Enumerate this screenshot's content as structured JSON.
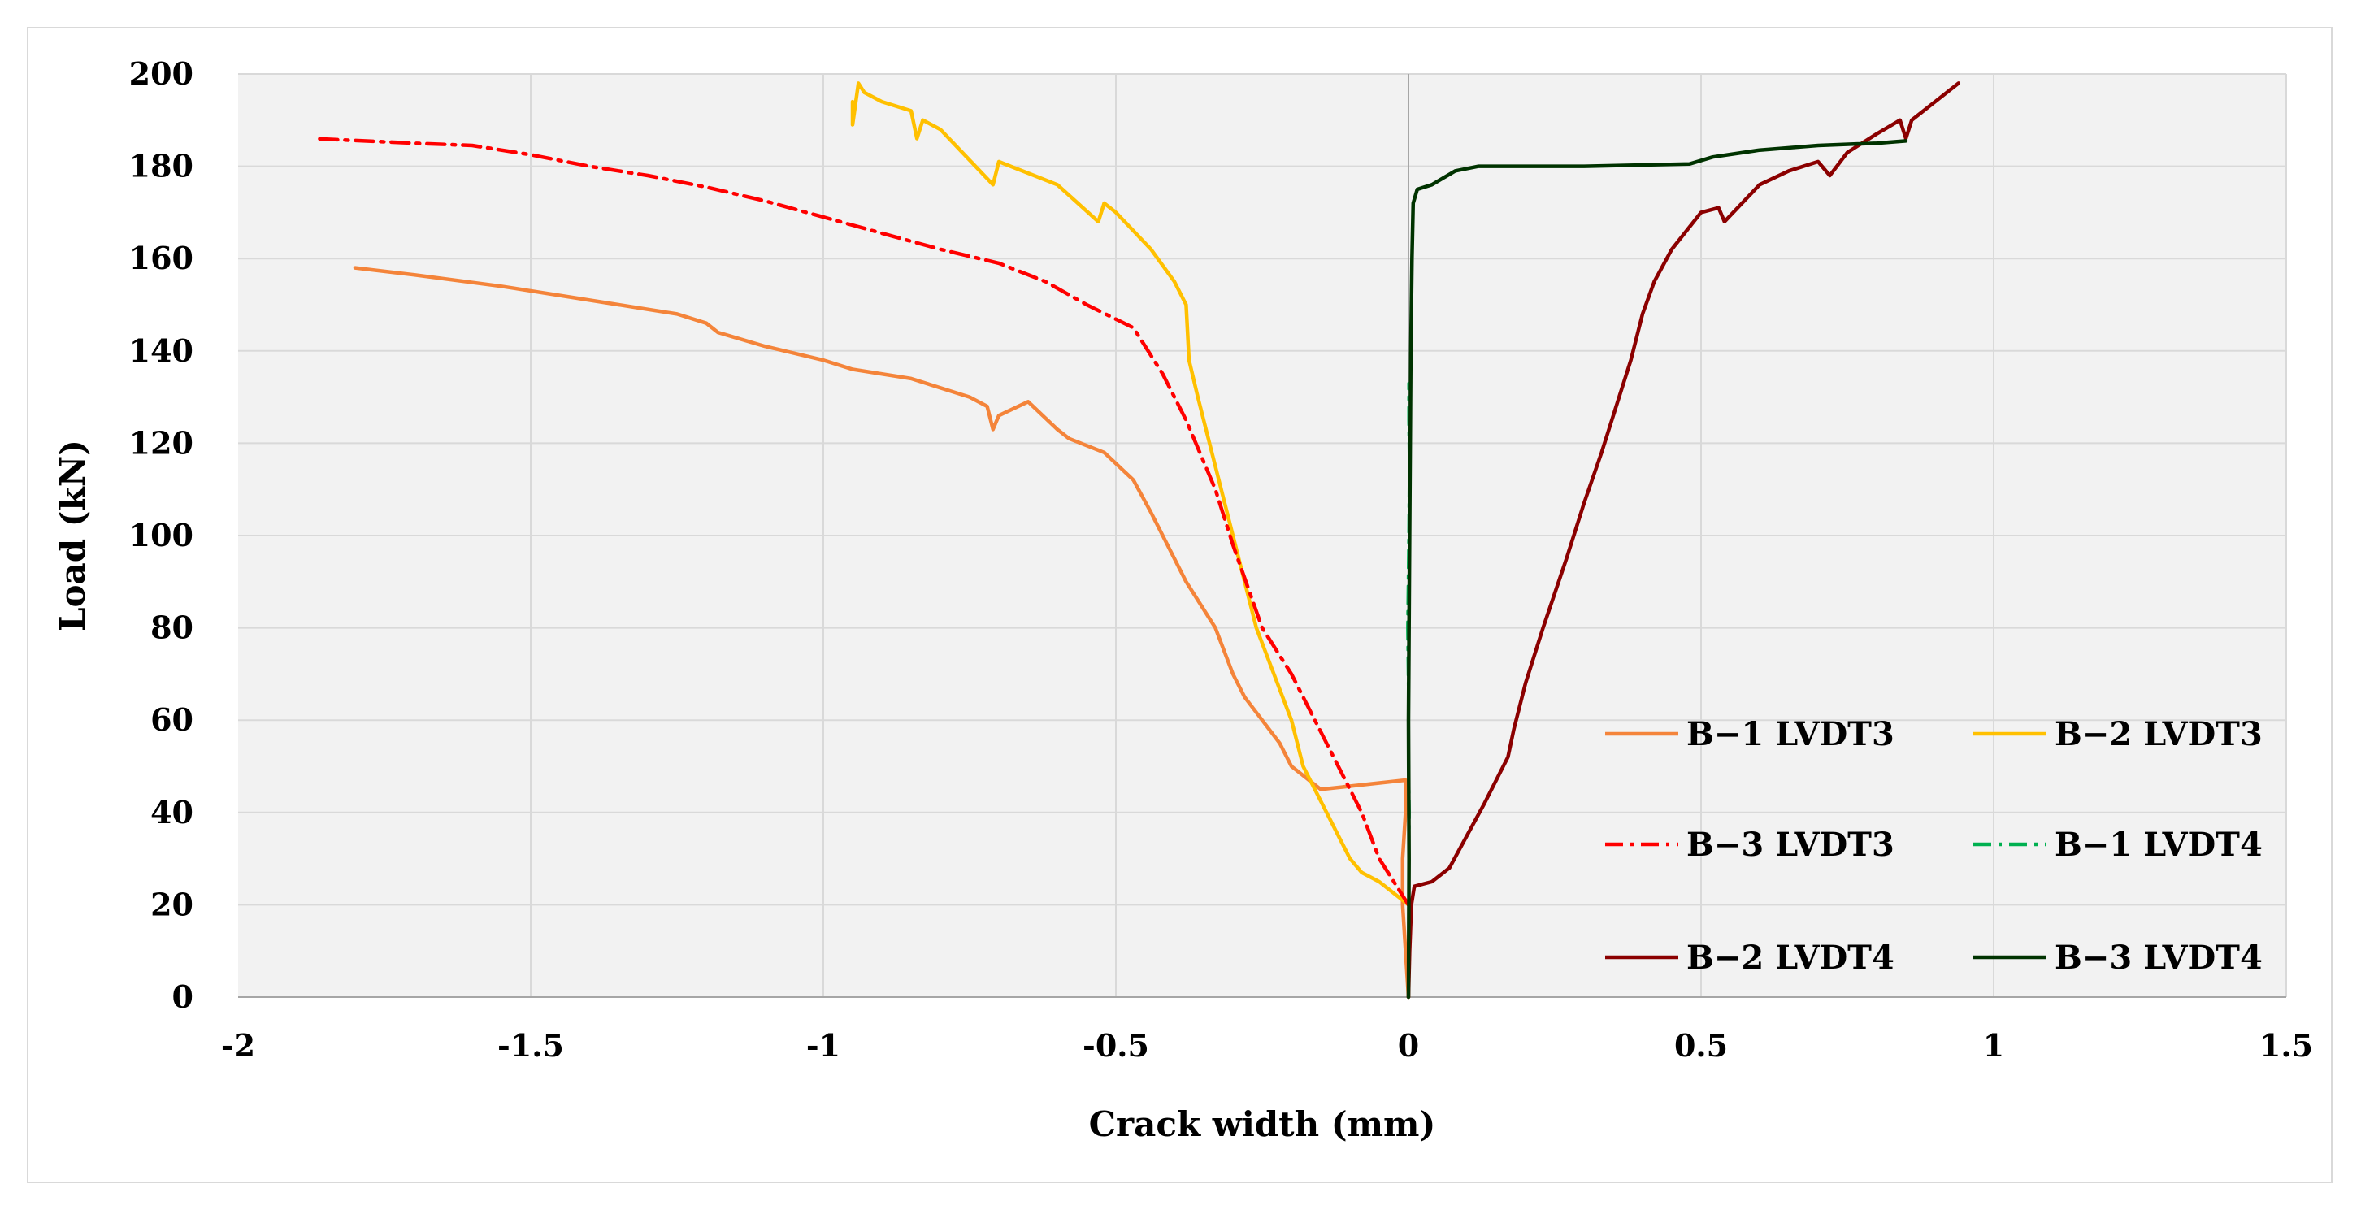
{
  "chart_data": {
    "type": "line",
    "title": "",
    "xlabel": "Crack width (mm)",
    "ylabel": "Load (kN)",
    "xlim": [
      -2,
      1.5
    ],
    "ylim": [
      0,
      200
    ],
    "x_ticks": [
      -2,
      -1.5,
      -1,
      -0.5,
      0,
      0.5,
      1,
      1.5
    ],
    "x_tick_labels": [
      "-2",
      "-1.5",
      "-1",
      "-0.5",
      "0",
      "0.5",
      "1",
      "1.5"
    ],
    "y_ticks": [
      0,
      20,
      40,
      60,
      80,
      100,
      120,
      140,
      160,
      180,
      200
    ],
    "y_tick_labels": [
      "0",
      "20",
      "40",
      "60",
      "80",
      "100",
      "120",
      "140",
      "160",
      "180",
      "200"
    ],
    "grid": true,
    "legend_position": "bottom-right",
    "series": [
      {
        "name": "B−1 LVDT3",
        "color": "#f4843a",
        "dash": "solid",
        "points": [
          [
            0,
            0
          ],
          [
            -0.005,
            10
          ],
          [
            -0.01,
            20
          ],
          [
            -0.01,
            30
          ],
          [
            -0.005,
            40
          ],
          [
            -0.005,
            47
          ],
          [
            -0.15,
            45
          ],
          [
            -0.2,
            50
          ],
          [
            -0.22,
            55
          ],
          [
            -0.25,
            60
          ],
          [
            -0.28,
            65
          ],
          [
            -0.3,
            70
          ],
          [
            -0.33,
            80
          ],
          [
            -0.36,
            86
          ],
          [
            -0.38,
            90
          ],
          [
            -0.42,
            100
          ],
          [
            -0.44,
            105
          ],
          [
            -0.47,
            112
          ],
          [
            -0.52,
            118
          ],
          [
            -0.58,
            121
          ],
          [
            -0.6,
            123
          ],
          [
            -0.65,
            129
          ],
          [
            -0.7,
            126
          ],
          [
            -0.71,
            123
          ],
          [
            -0.72,
            128
          ],
          [
            -0.75,
            130
          ],
          [
            -0.85,
            134
          ],
          [
            -0.95,
            136
          ],
          [
            -1.0,
            138
          ],
          [
            -1.1,
            141
          ],
          [
            -1.18,
            144
          ],
          [
            -1.2,
            146
          ],
          [
            -1.25,
            148
          ],
          [
            -1.35,
            150
          ],
          [
            -1.45,
            152
          ],
          [
            -1.55,
            154
          ],
          [
            -1.7,
            156.5
          ],
          [
            -1.8,
            158
          ]
        ]
      },
      {
        "name": "B−2 LVDT3",
        "color": "#ffc000",
        "dash": "solid",
        "points": [
          [
            0,
            20
          ],
          [
            -0.05,
            25
          ],
          [
            -0.08,
            27
          ],
          [
            -0.1,
            30
          ],
          [
            -0.14,
            40
          ],
          [
            -0.18,
            50
          ],
          [
            -0.2,
            60
          ],
          [
            -0.23,
            70
          ],
          [
            -0.26,
            80
          ],
          [
            -0.3,
            100
          ],
          [
            -0.33,
            115
          ],
          [
            -0.36,
            130
          ],
          [
            -0.375,
            138
          ],
          [
            -0.38,
            150
          ],
          [
            -0.4,
            155
          ],
          [
            -0.44,
            162
          ],
          [
            -0.5,
            170
          ],
          [
            -0.52,
            172
          ],
          [
            -0.53,
            168
          ],
          [
            -0.6,
            176
          ],
          [
            -0.68,
            180
          ],
          [
            -0.7,
            181
          ],
          [
            -0.71,
            176
          ],
          [
            -0.8,
            188
          ],
          [
            -0.83,
            190
          ],
          [
            -0.84,
            186
          ],
          [
            -0.85,
            192
          ],
          [
            -0.9,
            194
          ],
          [
            -0.93,
            196
          ],
          [
            -0.94,
            198
          ],
          [
            -0.95,
            189
          ],
          [
            -0.95,
            194
          ]
        ]
      },
      {
        "name": "B−3 LVDT3",
        "color": "#ff0000",
        "dash": "dashdot",
        "points": [
          [
            0,
            20
          ],
          [
            -0.02,
            24
          ],
          [
            -0.05,
            30
          ],
          [
            -0.08,
            40
          ],
          [
            -0.12,
            50
          ],
          [
            -0.16,
            60
          ],
          [
            -0.2,
            70
          ],
          [
            -0.25,
            80
          ],
          [
            -0.3,
            98
          ],
          [
            -0.33,
            110
          ],
          [
            -0.38,
            125
          ],
          [
            -0.42,
            135
          ],
          [
            -0.47,
            145
          ],
          [
            -0.55,
            150
          ],
          [
            -0.62,
            155
          ],
          [
            -0.7,
            159
          ],
          [
            -0.8,
            162
          ],
          [
            -0.9,
            165.5
          ],
          [
            -1.0,
            169
          ],
          [
            -1.1,
            172.5
          ],
          [
            -1.2,
            175.5
          ],
          [
            -1.3,
            178
          ],
          [
            -1.4,
            180
          ],
          [
            -1.5,
            182.5
          ],
          [
            -1.6,
            184.5
          ],
          [
            -1.7,
            185
          ],
          [
            -1.87,
            186
          ]
        ]
      },
      {
        "name": "B−1 LVDT4",
        "color": "#00b050",
        "dash": "dashdot",
        "points": [
          [
            0,
            0
          ],
          [
            0.0,
            20
          ],
          [
            0.002,
            40
          ],
          [
            0.0,
            60
          ],
          [
            -0.002,
            80
          ],
          [
            0.0,
            100
          ],
          [
            0.001,
            115
          ],
          [
            0.0,
            125
          ],
          [
            0.0,
            133
          ]
        ]
      },
      {
        "name": "B−2 LVDT4",
        "color": "#8b0000",
        "dash": "solid",
        "points": [
          [
            0,
            0
          ],
          [
            0.002,
            10
          ],
          [
            0.005,
            20
          ],
          [
            0.01,
            24
          ],
          [
            0.04,
            25
          ],
          [
            0.07,
            28
          ],
          [
            0.1,
            35
          ],
          [
            0.13,
            42
          ],
          [
            0.17,
            52
          ],
          [
            0.18,
            58
          ],
          [
            0.2,
            68
          ],
          [
            0.23,
            80
          ],
          [
            0.27,
            95
          ],
          [
            0.3,
            107
          ],
          [
            0.33,
            118
          ],
          [
            0.36,
            130
          ],
          [
            0.38,
            138
          ],
          [
            0.4,
            148
          ],
          [
            0.42,
            155
          ],
          [
            0.45,
            162
          ],
          [
            0.5,
            170
          ],
          [
            0.53,
            171
          ],
          [
            0.54,
            168
          ],
          [
            0.6,
            176
          ],
          [
            0.65,
            179
          ],
          [
            0.7,
            181
          ],
          [
            0.72,
            178
          ],
          [
            0.75,
            183
          ],
          [
            0.8,
            187
          ],
          [
            0.84,
            190
          ],
          [
            0.85,
            186
          ],
          [
            0.86,
            190
          ],
          [
            0.9,
            194
          ],
          [
            0.94,
            198
          ]
        ]
      },
      {
        "name": "B−3 LVDT4",
        "color": "#003300",
        "dash": "solid",
        "points": [
          [
            0,
            0
          ],
          [
            0.001,
            30
          ],
          [
            0.0,
            60
          ],
          [
            0.002,
            100
          ],
          [
            0.004,
            140
          ],
          [
            0.006,
            160
          ],
          [
            0.008,
            172
          ],
          [
            0.015,
            175
          ],
          [
            0.04,
            176
          ],
          [
            0.08,
            179
          ],
          [
            0.12,
            180
          ],
          [
            0.3,
            180
          ],
          [
            0.48,
            180.5
          ],
          [
            0.52,
            182
          ],
          [
            0.6,
            183.5
          ],
          [
            0.7,
            184.5
          ],
          [
            0.8,
            185
          ],
          [
            0.85,
            185.5
          ]
        ]
      }
    ]
  }
}
